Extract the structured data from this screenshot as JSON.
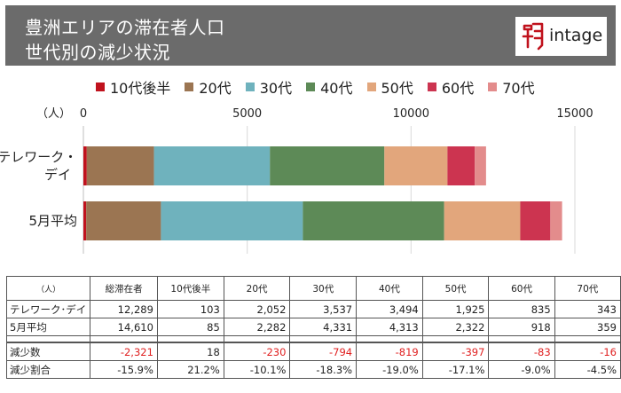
{
  "header": {
    "title_line1": "豊洲エリアの滞在者人口",
    "title_line2": "世代別の減少状況",
    "logo_text": "intage"
  },
  "colors": {
    "header_bg": "#6b6b6b",
    "negative_text": "#e02020"
  },
  "chart_data": {
    "type": "bar",
    "orientation": "horizontal",
    "stacked": true,
    "unit_label": "（人）",
    "xlim": [
      0,
      15000
    ],
    "x_ticks": [
      0,
      5000,
      10000,
      15000
    ],
    "x_tick_labels": [
      "0",
      "5000",
      "10000",
      "15000"
    ],
    "grid": true,
    "legend_position": "top",
    "categories": [
      "テレワーク・\nデイ",
      "5月平均"
    ],
    "series": [
      {
        "name": "10代後半",
        "color": "#c0121d",
        "values": [
          103,
          85
        ]
      },
      {
        "name": "20代",
        "color": "#9b7552",
        "values": [
          2052,
          2282
        ]
      },
      {
        "name": "30代",
        "color": "#6fb2bd",
        "values": [
          3537,
          4331
        ]
      },
      {
        "name": "40代",
        "color": "#5d8a57",
        "values": [
          3494,
          4313
        ]
      },
      {
        "name": "50代",
        "color": "#e2a67c",
        "values": [
          1925,
          2322
        ]
      },
      {
        "name": "60代",
        "color": "#cc3450",
        "values": [
          835,
          918
        ]
      },
      {
        "name": "70代",
        "color": "#e38c8c",
        "values": [
          343,
          359
        ]
      }
    ]
  },
  "table": {
    "unit": "（人）",
    "columns": [
      "総滞在者",
      "10代後半",
      "20代",
      "30代",
      "40代",
      "50代",
      "60代",
      "70代"
    ],
    "rows": [
      {
        "label": "テレワーク･デイ",
        "cells": [
          "12,289",
          "103",
          "2,052",
          "3,537",
          "3,494",
          "1,925",
          "835",
          "343"
        ]
      },
      {
        "label": "5月平均",
        "cells": [
          "14,610",
          "85",
          "2,282",
          "4,331",
          "4,313",
          "2,322",
          "918",
          "359"
        ]
      },
      {
        "label": "減少数",
        "cells": [
          "-2,321",
          "18",
          "-230",
          "-794",
          "-819",
          "-397",
          "-83",
          "-16"
        ]
      },
      {
        "label": "減少割合",
        "cells": [
          "-15.9%",
          "21.2%",
          "-10.1%",
          "-18.3%",
          "-19.0%",
          "-17.1%",
          "-9.0%",
          "-4.5%"
        ]
      }
    ]
  }
}
